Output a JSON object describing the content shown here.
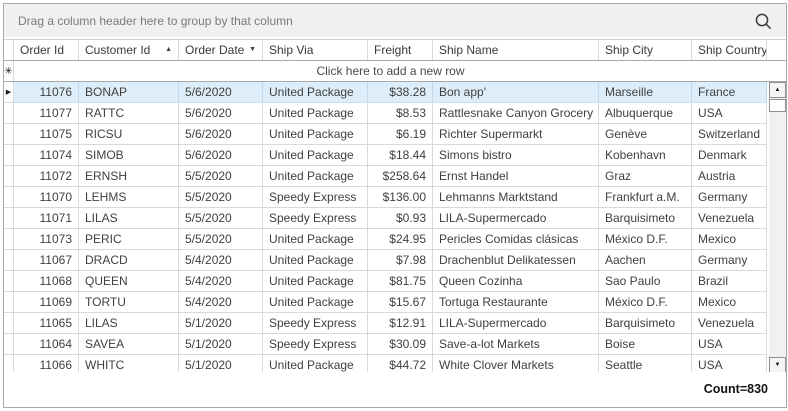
{
  "group_panel": {
    "hint": "Drag a column header here to group by that column"
  },
  "icons": {
    "search": "magnifier",
    "sort_asc": "▲",
    "filter": "▼",
    "new_row": "✳",
    "current_row": "▶",
    "scroll_up": "▲",
    "scroll_down": "▼"
  },
  "colors": {
    "panel_bg": "#f0f0f0",
    "selected_row_bg": "#ddeefa",
    "grid_line": "#d9d9d9",
    "header_line": "#a8a8a8",
    "hint_text": "#7a7a7a"
  },
  "grid": {
    "columns": [
      {
        "key": "order-id",
        "label": "Order Id",
        "align": "right"
      },
      {
        "key": "customer-id",
        "label": "Customer Id",
        "align": "left",
        "sort": "ascending"
      },
      {
        "key": "order-date",
        "label": "Order Date",
        "align": "left",
        "filter": true
      },
      {
        "key": "ship-via",
        "label": "Ship Via",
        "align": "left"
      },
      {
        "key": "freight",
        "label": "Freight",
        "align": "right"
      },
      {
        "key": "ship-name",
        "label": "Ship Name",
        "align": "left"
      },
      {
        "key": "ship-city",
        "label": "Ship City",
        "align": "left"
      },
      {
        "key": "ship-country",
        "label": "Ship Country",
        "align": "left"
      }
    ],
    "add_row": {
      "label": "Click here to add a new row"
    },
    "rows": [
      {
        "selected": true,
        "cells": [
          "11076",
          "BONAP",
          "5/6/2020",
          "United Package",
          "$38.28",
          "Bon app'",
          "Marseille",
          "France"
        ]
      },
      {
        "selected": false,
        "cells": [
          "11077",
          "RATTC",
          "5/6/2020",
          "United Package",
          "$8.53",
          "Rattlesnake Canyon Grocery",
          "Albuquerque",
          "USA"
        ]
      },
      {
        "selected": false,
        "cells": [
          "11075",
          "RICSU",
          "5/6/2020",
          "United Package",
          "$6.19",
          "Richter Supermarkt",
          "Genève",
          "Switzerland"
        ]
      },
      {
        "selected": false,
        "cells": [
          "11074",
          "SIMOB",
          "5/6/2020",
          "United Package",
          "$18.44",
          "Simons bistro",
          "Kobenhavn",
          "Denmark"
        ]
      },
      {
        "selected": false,
        "cells": [
          "11072",
          "ERNSH",
          "5/5/2020",
          "United Package",
          "$258.64",
          "Ernst Handel",
          "Graz",
          "Austria"
        ]
      },
      {
        "selected": false,
        "cells": [
          "11070",
          "LEHMS",
          "5/5/2020",
          "Speedy Express",
          "$136.00",
          "Lehmanns Marktstand",
          "Frankfurt a.M.",
          "Germany"
        ]
      },
      {
        "selected": false,
        "cells": [
          "11071",
          "LILAS",
          "5/5/2020",
          "Speedy Express",
          "$0.93",
          "LILA-Supermercado",
          "Barquisimeto",
          "Venezuela"
        ]
      },
      {
        "selected": false,
        "cells": [
          "11073",
          "PERIC",
          "5/5/2020",
          "United Package",
          "$24.95",
          "Pericles Comidas clásicas",
          "México D.F.",
          "Mexico"
        ]
      },
      {
        "selected": false,
        "cells": [
          "11067",
          "DRACD",
          "5/4/2020",
          "United Package",
          "$7.98",
          "Drachenblut Delikatessen",
          "Aachen",
          "Germany"
        ]
      },
      {
        "selected": false,
        "cells": [
          "11068",
          "QUEEN",
          "5/4/2020",
          "United Package",
          "$81.75",
          "Queen Cozinha",
          "Sao Paulo",
          "Brazil"
        ]
      },
      {
        "selected": false,
        "cells": [
          "11069",
          "TORTU",
          "5/4/2020",
          "United Package",
          "$15.67",
          "Tortuga Restaurante",
          "México D.F.",
          "Mexico"
        ]
      },
      {
        "selected": false,
        "cells": [
          "11065",
          "LILAS",
          "5/1/2020",
          "Speedy Express",
          "$12.91",
          "LILA-Supermercado",
          "Barquisimeto",
          "Venezuela"
        ]
      },
      {
        "selected": false,
        "cells": [
          "11064",
          "SAVEA",
          "5/1/2020",
          "Speedy Express",
          "$30.09",
          "Save-a-lot Markets",
          "Boise",
          "USA"
        ]
      },
      {
        "selected": false,
        "cells": [
          "11066",
          "WHITC",
          "5/1/2020",
          "United Package",
          "$44.72",
          "White Clover Markets",
          "Seattle",
          "USA"
        ]
      }
    ]
  },
  "status": {
    "count_label": "Count=830"
  }
}
